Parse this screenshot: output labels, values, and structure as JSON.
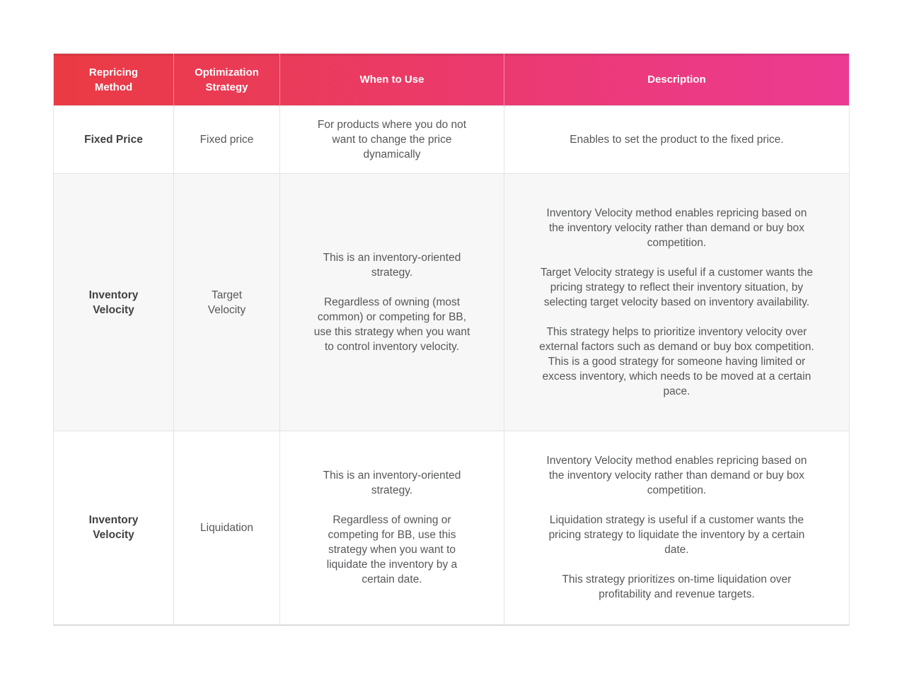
{
  "table": {
    "columns": [
      {
        "id": "repricing_method",
        "label": "Repricing Method"
      },
      {
        "id": "optimization_strategy",
        "label": "Optimization Strategy"
      },
      {
        "id": "when_to_use",
        "label": "When to Use"
      },
      {
        "id": "description",
        "label": "Description"
      }
    ],
    "rows": [
      {
        "repricing_method": "Fixed Price",
        "optimization_strategy": "Fixed price",
        "when_to_use": [
          "For products where you do not want to change the price dynamically"
        ],
        "description": [
          "Enables to set the product to the fixed price."
        ]
      },
      {
        "repricing_method": "Inventory Velocity",
        "optimization_strategy": "Target Velocity",
        "when_to_use": [
          "This is an inventory-oriented strategy.",
          "Regardless of owning (most common) or competing for BB, use this strategy when you want to control inventory velocity."
        ],
        "description": [
          "Inventory Velocity method enables repricing based on the inventory velocity rather than demand or buy box competition.",
          "Target Velocity strategy is useful if a customer wants the pricing strategy to reflect their inventory situation, by selecting target velocity based on inventory availability.",
          "This strategy helps to prioritize inventory velocity over external factors such as demand or buy box competition. This is a good strategy for someone having limited or excess inventory, which needs to be moved at a certain pace."
        ]
      },
      {
        "repricing_method": "Inventory Velocity",
        "optimization_strategy": "Liquidation",
        "when_to_use": [
          "This is an inventory-oriented strategy.",
          "Regardless of owning or competing for BB, use this strategy when you want to liquidate the inventory by a certain date."
        ],
        "description": [
          "Inventory Velocity method enables repricing based on the inventory velocity rather than demand or buy box competition.",
          "Liquidation strategy is useful if a customer wants the pricing strategy to liquidate the inventory by a certain date.",
          "This strategy prioritizes on-time liquidation over profitability and revenue targets."
        ]
      }
    ],
    "colors": {
      "header_gradient_start": "#ea3b43",
      "header_gradient_end": "#ec3a93",
      "header_text": "#ffffff",
      "body_text": "#565759",
      "bold_text": "#414042",
      "alt_row_background": "#f7f7f7",
      "border": "#e4e4e4",
      "page_background": "#ffffff"
    }
  }
}
